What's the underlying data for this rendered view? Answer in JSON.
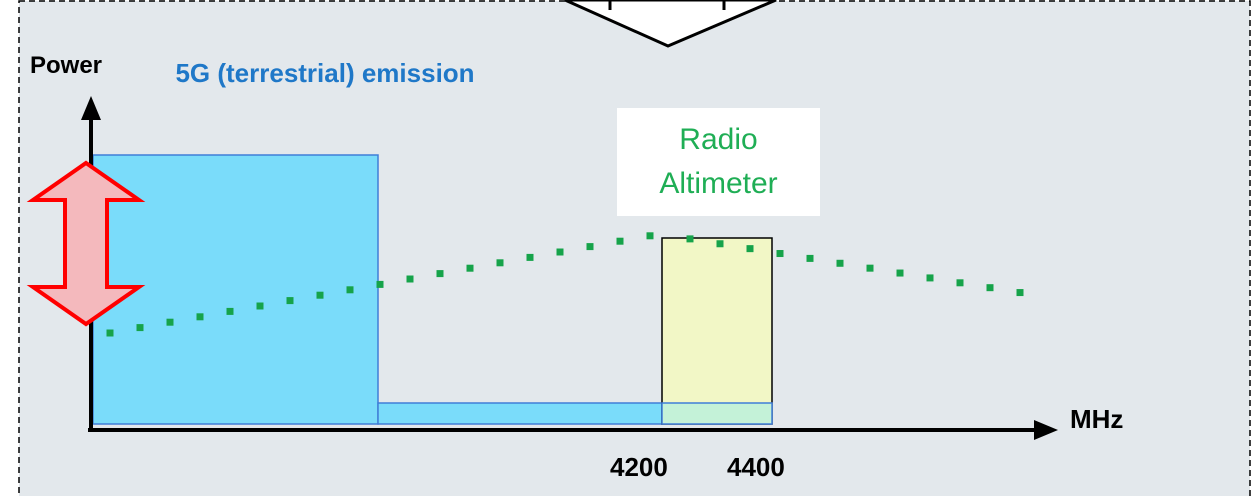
{
  "axis": {
    "y_label": "Power",
    "x_label": "MHz",
    "tick_labels": [
      "4200",
      "4400"
    ]
  },
  "blocks": {
    "emission_label": "5G (terrestrial) emission",
    "altimeter_label": "Radio Altimeter"
  },
  "colors": {
    "panel_background": "#e3e8ec",
    "emission_fill": "#7adcfa",
    "emission_text": "#1f78c8",
    "altimeter_fill": "#f2f7c6",
    "altimeter_text": "#1fae55",
    "dotted_curve": "#16a34a",
    "power_arrow_fill": "#f4b9bd",
    "power_arrow_stroke": "#ff0000"
  }
}
